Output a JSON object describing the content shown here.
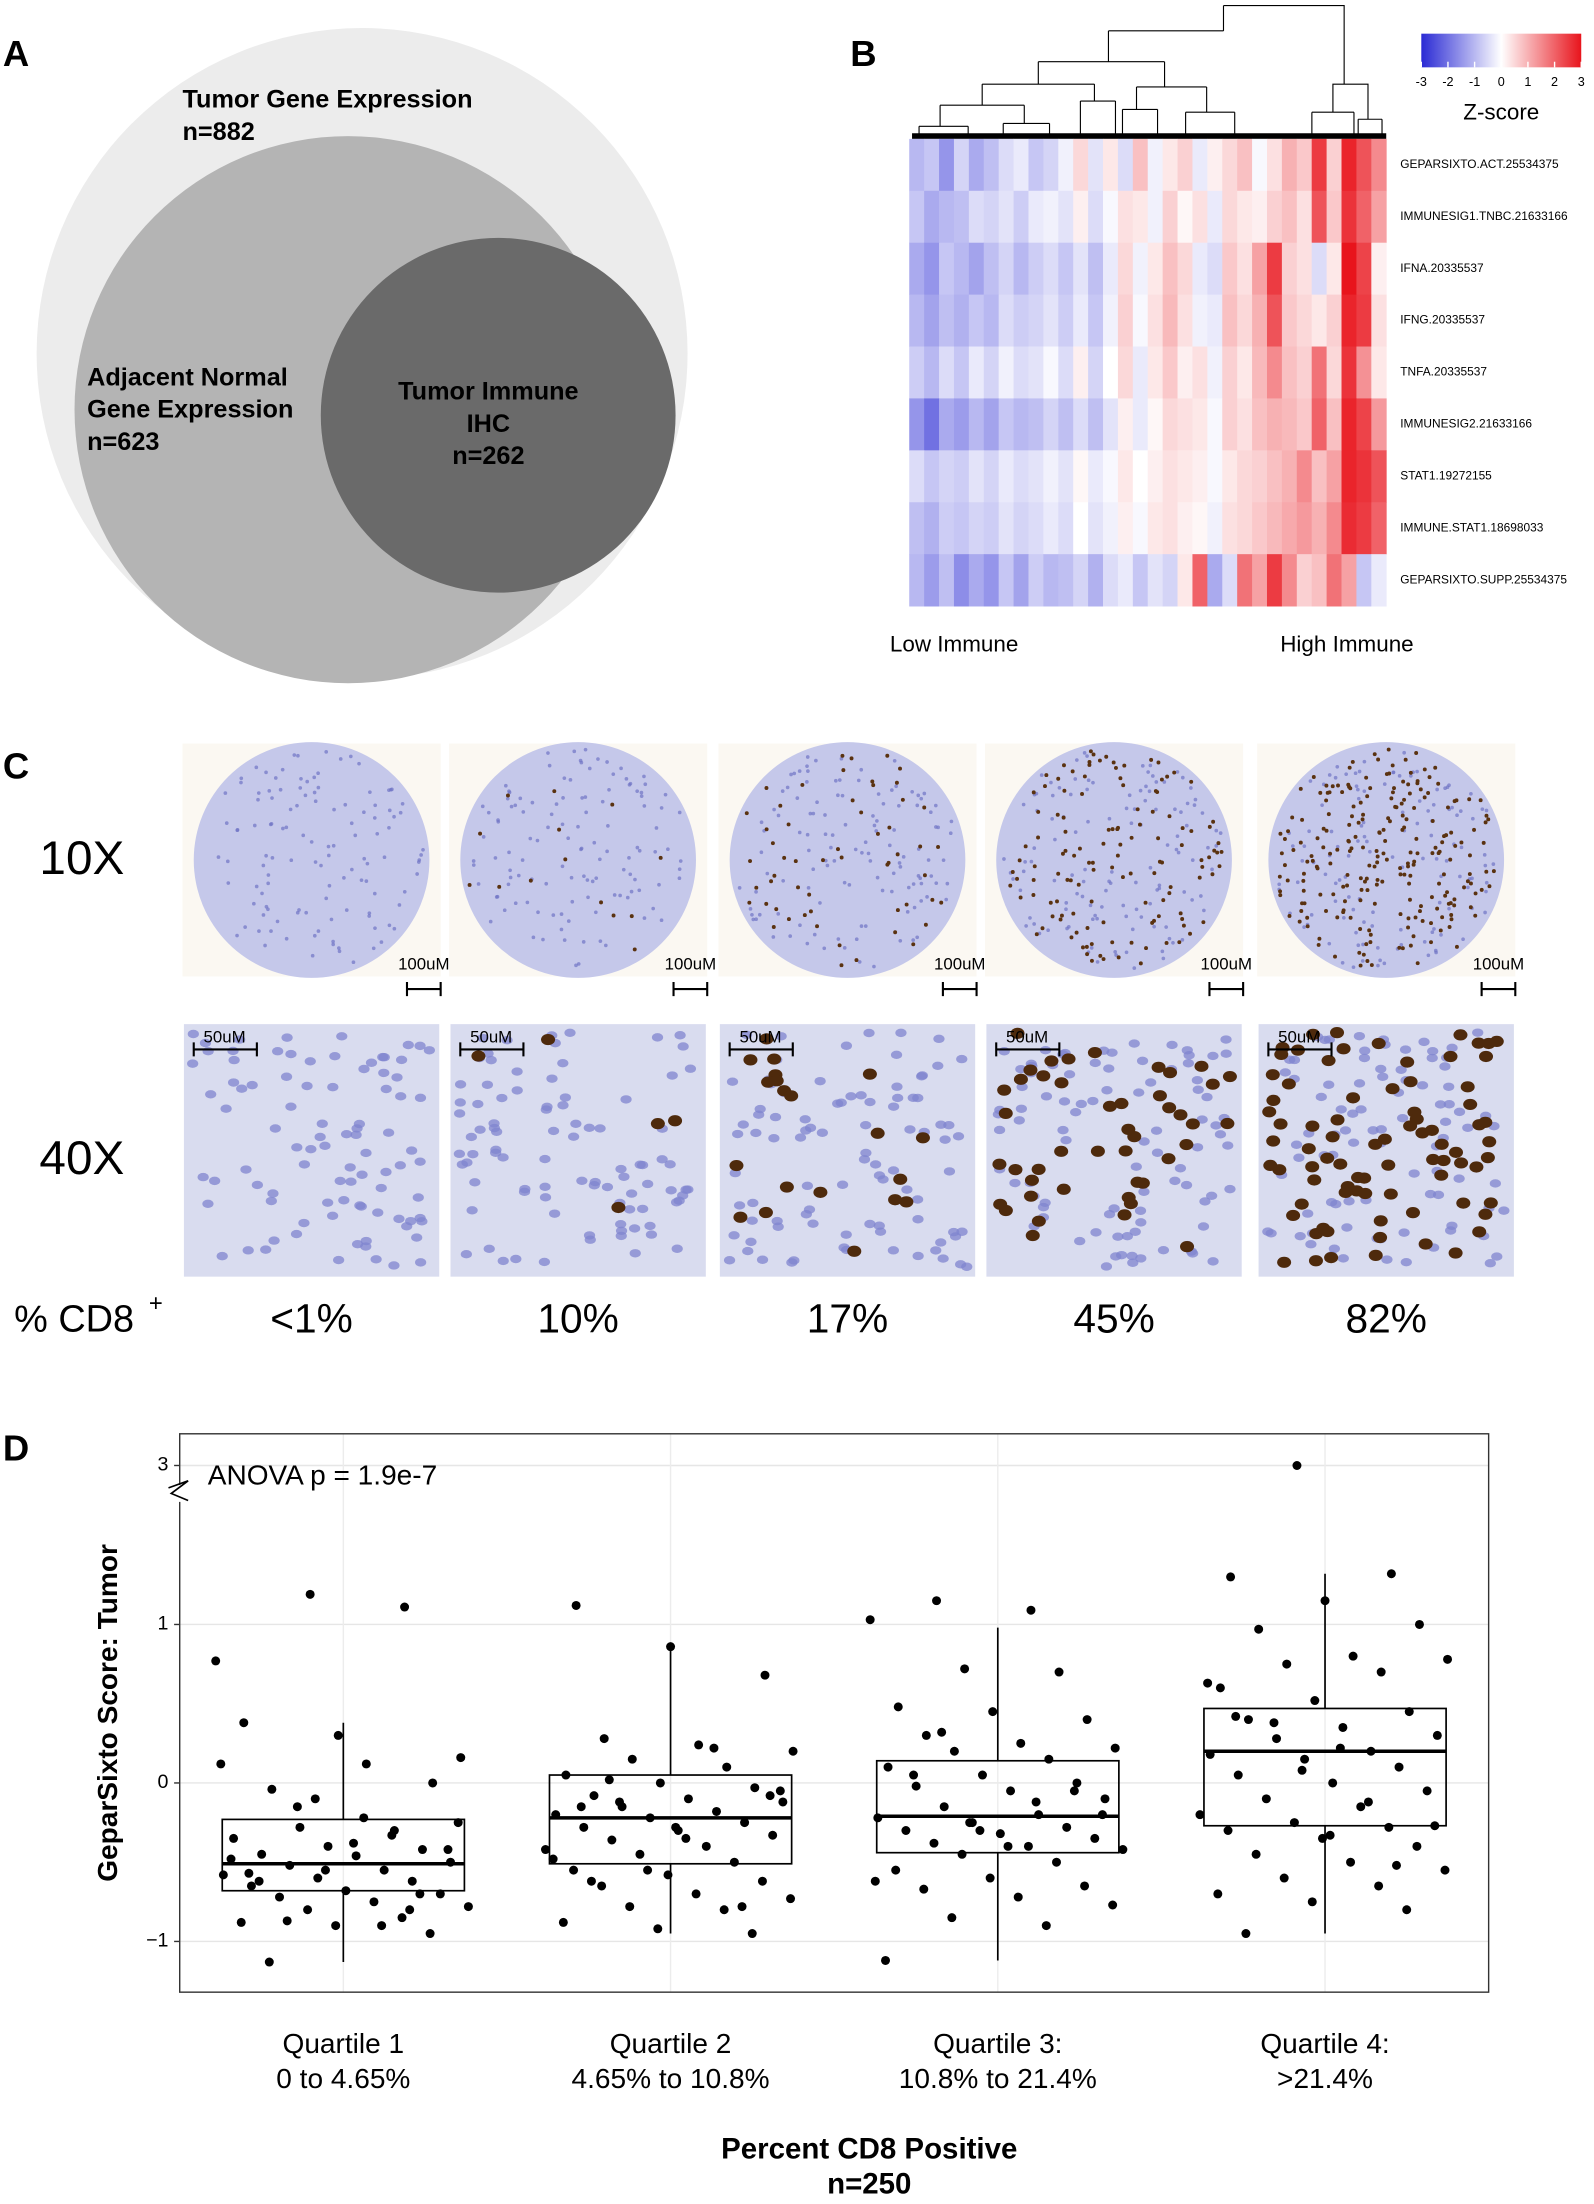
{
  "panel_labels": [
    "A",
    "B",
    "C",
    "D"
  ],
  "chart_data": [
    {
      "type": "venn",
      "sets": [
        {
          "name_lines": [
            "Tumor Gene Expression"
          ],
          "label": "n=882",
          "size": 882,
          "color": "#ececec"
        },
        {
          "name_lines": [
            "Adjacent Normal",
            "Gene Expression"
          ],
          "label": "n=623",
          "size": 623,
          "color": "#b4b4b4"
        },
        {
          "name_lines": [
            "Tumor Immune",
            "IHC"
          ],
          "label": "n=262",
          "size": 262,
          "color": "#6a6a6a"
        }
      ]
    },
    {
      "type": "heatmap",
      "rows": [
        "GEPARSIXTO.ACT.25534375",
        "IMMUNESIG1.TNBC.21633166",
        "IFNA.20335537",
        "IFNG.20335537",
        "TNFA.20335537",
        "IMMUNESIG2.21633166",
        "STAT1.19272155",
        "IMMUNE.STAT1.18698033",
        "GEPARSIXTO.SUPP.25534375"
      ],
      "values": [
        [
          -1,
          -0.8,
          -1.5,
          -0.6,
          -1.2,
          -0.9,
          -0.5,
          -0.3,
          -0.8,
          -0.6,
          -0.2,
          0.5,
          -0.4,
          0.3,
          -0.5,
          0.8,
          -0.2,
          0.3,
          0.6,
          -0.3,
          0.2,
          0.5,
          0.8,
          -0.1,
          0.4,
          1.0,
          0.7,
          2.5,
          0.6,
          2.8,
          2.2,
          1.5
        ],
        [
          -0.8,
          -1.2,
          -1.0,
          -0.9,
          -0.5,
          -0.6,
          -0.4,
          -0.7,
          -0.3,
          -0.2,
          -0.4,
          0.2,
          -0.5,
          -0.1,
          0.4,
          0.3,
          -0.2,
          0.6,
          0.1,
          0.4,
          -0.3,
          0.5,
          0.3,
          0.2,
          0.6,
          0.8,
          0.4,
          2.2,
          0.7,
          2.6,
          2.0,
          1.2
        ],
        [
          -1.2,
          -1.5,
          -0.8,
          -1.0,
          -1.3,
          -0.9,
          -0.6,
          -1.0,
          -0.7,
          -0.5,
          -0.8,
          -0.4,
          -0.9,
          -0.3,
          0.5,
          -0.2,
          0.3,
          0.8,
          0.5,
          -0.3,
          -0.5,
          0.7,
          0.4,
          1.2,
          2.5,
          0.6,
          0.4,
          -0.5,
          0.3,
          3.0,
          2.4,
          0.2
        ],
        [
          -1.0,
          -1.3,
          -0.9,
          -1.1,
          -0.8,
          -1.0,
          -0.5,
          -0.7,
          -0.6,
          -0.4,
          -0.7,
          -0.3,
          -0.8,
          -0.2,
          0.6,
          -0.1,
          0.4,
          0.9,
          0.4,
          -0.2,
          -0.3,
          0.8,
          0.5,
          1.0,
          2.2,
          0.7,
          0.5,
          0.3,
          0.6,
          2.8,
          2.5,
          0.4
        ],
        [
          -0.7,
          -1.0,
          -0.5,
          -0.8,
          -0.3,
          -0.6,
          -0.2,
          -0.5,
          -0.4,
          -0.1,
          -0.5,
          0.2,
          -0.6,
          0.0,
          0.5,
          -0.3,
          0.3,
          0.7,
          0.2,
          0.4,
          -0.2,
          0.6,
          0.3,
          0.9,
          1.5,
          0.8,
          0.6,
          1.8,
          0.5,
          2.6,
          1.4,
          0.3
        ],
        [
          -1.5,
          -2.0,
          -1.2,
          -1.4,
          -1.0,
          -1.3,
          -0.8,
          -1.0,
          -0.9,
          -0.6,
          -0.9,
          -0.5,
          -0.9,
          -0.4,
          0.2,
          -0.3,
          0.1,
          0.5,
          0.4,
          0.3,
          -0.1,
          0.6,
          0.4,
          0.8,
          1.0,
          0.9,
          0.7,
          2.0,
          0.8,
          2.8,
          2.4,
          1.3
        ],
        [
          -0.5,
          -0.8,
          -0.6,
          -0.7,
          -0.4,
          -0.6,
          -0.3,
          -0.5,
          -0.4,
          -0.2,
          -0.4,
          0.1,
          -0.3,
          -0.1,
          0.3,
          0.0,
          0.2,
          0.4,
          0.3,
          0.2,
          -0.1,
          0.3,
          0.5,
          0.6,
          0.8,
          1.0,
          1.5,
          0.8,
          1.2,
          2.8,
          2.6,
          2.2
        ],
        [
          -0.9,
          -1.1,
          -0.7,
          -0.8,
          -0.6,
          -0.7,
          -0.4,
          -0.6,
          -0.5,
          -0.3,
          -0.5,
          0.0,
          -0.4,
          -0.2,
          0.2,
          -0.1,
          0.3,
          0.4,
          0.2,
          0.1,
          -0.2,
          0.4,
          0.5,
          0.7,
          0.9,
          1.1,
          1.3,
          1.0,
          1.5,
          2.7,
          2.5,
          2.0
        ],
        [
          -1.0,
          -1.4,
          -0.9,
          -1.6,
          -1.2,
          -1.5,
          -0.8,
          -1.3,
          -0.7,
          -1.0,
          -0.9,
          -0.6,
          -1.1,
          -0.5,
          -0.3,
          -0.8,
          -0.4,
          -0.6,
          0.3,
          2.0,
          -1.2,
          -0.5,
          1.8,
          1.2,
          2.5,
          1.5,
          0.6,
          0.8,
          1.8,
          1.2,
          -0.8,
          -0.3
        ]
      ],
      "colorscale": [
        "#2a2ad4",
        "#ffffff",
        "#e8141c"
      ],
      "zlim": [
        -3,
        3
      ],
      "zticks": [
        -3,
        -2,
        -1,
        0,
        1,
        2,
        3
      ],
      "colorbar_title": "Z-score",
      "x_annotations": [
        "Low Immune",
        "High Immune"
      ]
    },
    {
      "type": "box",
      "annotation": "ANOVA p = 1.9e-7",
      "y_label": "GeparSixto Score: Tumor",
      "x_label": "Percent CD8 Positive",
      "x_sublabel": "n=250",
      "categories": [
        [
          "Quartile 1",
          "0 to 4.65%"
        ],
        [
          "Quartile 2",
          "4.65% to 10.8%"
        ],
        [
          "Quartile 3:",
          "10.8% to 21.4%"
        ],
        [
          "Quartile 4:",
          ">21.4%"
        ]
      ],
      "ylim": [
        -1.32,
        3.2
      ],
      "axis_break": [
        1.8,
        2.85
      ],
      "yticks": [
        {
          "value": -1,
          "label": "−1"
        },
        0,
        1,
        3
      ],
      "grid": true,
      "boxes": [
        {
          "whisker_low": -1.13,
          "q1": -0.68,
          "median": -0.51,
          "q3": -0.23,
          "whisker_high": 0.38
        },
        {
          "whisker_low": -0.95,
          "q1": -0.51,
          "median": -0.22,
          "q3": 0.05,
          "whisker_high": 0.84
        },
        {
          "whisker_low": -1.12,
          "q1": -0.44,
          "median": -0.21,
          "q3": 0.14,
          "whisker_high": 0.98
        },
        {
          "whisker_low": -0.95,
          "q1": -0.27,
          "median": 0.2,
          "q3": 0.47,
          "whisker_high": 1.32
        }
      ],
      "points": [
        [
          0.77,
          1.19,
          1.11,
          0.38,
          0.3,
          0.0,
          -0.04,
          0.12,
          0.16,
          -0.28,
          -0.3,
          -0.35,
          -0.4,
          -0.42,
          -0.45,
          -0.46,
          -0.5,
          -0.52,
          -0.55,
          -0.58,
          -0.6,
          -0.62,
          -0.65,
          -0.68,
          -0.7,
          -0.72,
          -0.75,
          -0.78,
          -0.8,
          -0.85,
          -0.88,
          -0.9,
          -0.95,
          -1.13,
          -0.22,
          -0.25,
          -0.15,
          -0.33,
          -0.48,
          -0.55,
          -0.7,
          -0.62,
          -0.38,
          -0.42,
          -0.87,
          -0.9,
          0.12,
          -0.1,
          -0.8,
          -0.57
        ],
        [
          1.12,
          0.86,
          0.68,
          0.28,
          0.24,
          0.2,
          0.15,
          0.1,
          0.05,
          0.0,
          -0.03,
          -0.08,
          -0.1,
          -0.12,
          -0.15,
          -0.18,
          -0.2,
          -0.22,
          -0.25,
          -0.28,
          -0.3,
          -0.33,
          -0.36,
          -0.4,
          -0.42,
          -0.45,
          -0.5,
          -0.55,
          -0.58,
          -0.62,
          -0.65,
          -0.7,
          -0.73,
          -0.78,
          -0.8,
          -0.88,
          -0.92,
          -0.95,
          -0.62,
          -0.35,
          -0.05,
          -0.12,
          0.22,
          -0.48,
          -0.55,
          -0.78,
          -0.15,
          -0.28,
          -0.08,
          0.02
        ],
        [
          1.15,
          1.09,
          1.03,
          0.72,
          0.7,
          0.48,
          0.45,
          0.4,
          0.3,
          0.25,
          0.22,
          0.2,
          0.15,
          0.1,
          0.05,
          0.0,
          -0.02,
          -0.05,
          -0.1,
          -0.15,
          -0.2,
          -0.22,
          -0.25,
          -0.28,
          -0.3,
          -0.32,
          -0.35,
          -0.38,
          -0.4,
          -0.42,
          -0.45,
          -0.5,
          -0.55,
          -0.6,
          -0.65,
          -0.67,
          -0.72,
          -0.77,
          -0.85,
          -0.9,
          -1.12,
          -0.3,
          -0.05,
          0.05,
          -0.4,
          -0.2,
          0.32,
          -0.12,
          -0.62,
          -0.25
        ],
        [
          3.0,
          1.32,
          1.3,
          1.15,
          1.0,
          0.97,
          0.8,
          0.78,
          0.75,
          0.7,
          0.6,
          0.52,
          0.45,
          0.4,
          0.35,
          0.3,
          0.28,
          0.2,
          0.18,
          0.15,
          0.1,
          0.05,
          0.0,
          -0.05,
          -0.1,
          -0.15,
          -0.2,
          -0.25,
          -0.28,
          -0.3,
          -0.35,
          -0.4,
          -0.45,
          -0.5,
          -0.55,
          -0.6,
          -0.65,
          -0.7,
          -0.75,
          -0.8,
          -0.95,
          0.22,
          -0.27,
          0.38,
          -0.12,
          0.63,
          0.08,
          -0.52,
          0.42,
          -0.33
        ]
      ]
    }
  ],
  "ihc": {
    "magnifications": [
      "10X",
      "40X"
    ],
    "percent_label": "% CD8",
    "percent_label_sup": "+",
    "percentages": [
      "<1%",
      "10%",
      "17%",
      "45%",
      "82%"
    ],
    "scale_bars": [
      "100uM",
      "50uM"
    ]
  }
}
